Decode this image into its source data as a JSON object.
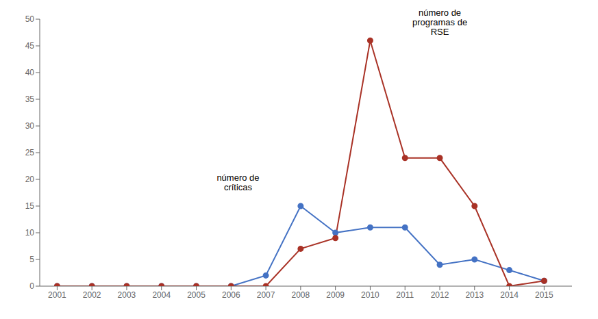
{
  "chart_data": {
    "type": "line",
    "x": [
      2001,
      2002,
      2003,
      2004,
      2005,
      2006,
      2007,
      2008,
      2009,
      2010,
      2011,
      2012,
      2013,
      2014,
      2015
    ],
    "series": [
      {
        "color": "#4472C4",
        "values": [
          0,
          0,
          0,
          0,
          0,
          0,
          2,
          15,
          10,
          11,
          11,
          4,
          5,
          3,
          1
        ]
      },
      {
        "color": "#A93226",
        "values": [
          0,
          0,
          0,
          0,
          0,
          0,
          0,
          7,
          9,
          46,
          24,
          24,
          15,
          0,
          1
        ]
      }
    ],
    "marker": "circle",
    "xlim": [
      2000.5,
      2015.8
    ],
    "xticks": [
      2001,
      2002,
      2003,
      2004,
      2005,
      2006,
      2007,
      2008,
      2009,
      2010,
      2011,
      2012,
      2013,
      2014,
      2015
    ],
    "ylim": [
      0,
      50
    ],
    "yticks": [
      0,
      5,
      10,
      15,
      20,
      25,
      30,
      35,
      40,
      45,
      50
    ],
    "grid": false,
    "annotations": [
      {
        "text": "número de\ncríticas",
        "x": 2006.2,
        "y": 17.5
      },
      {
        "text": "número de\nprogramas de\nRSE",
        "x": 2012.0,
        "y": 46.5
      }
    ]
  }
}
